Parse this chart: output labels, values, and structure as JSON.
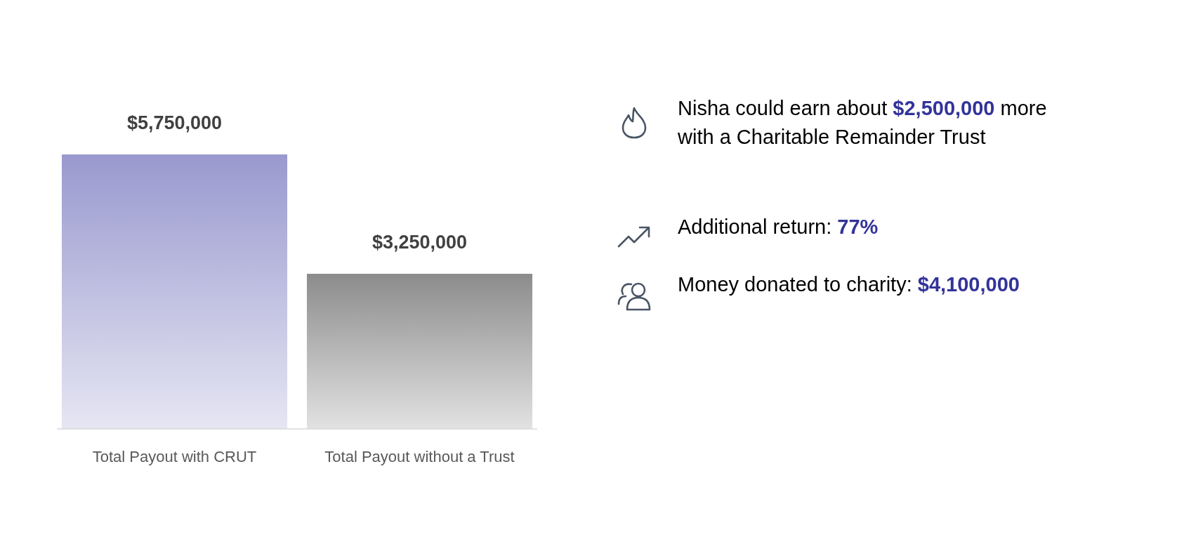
{
  "chart_data": {
    "type": "bar",
    "categories": [
      "Total Payout with CRUT",
      "Total Payout without a Trust"
    ],
    "values": [
      5750000,
      3250000
    ],
    "colors": [
      "#9999cf",
      "#8c8c8c"
    ],
    "data_labels": true,
    "value_labels": [
      "$5,750,000",
      "$3,250,000"
    ],
    "annotations": [
      "Nisha could earn about $2,500,000 more with a Charitable Remainder Trust",
      "Additional return: 77%",
      "Money donated to charity:  $4,100,000"
    ]
  }
}
